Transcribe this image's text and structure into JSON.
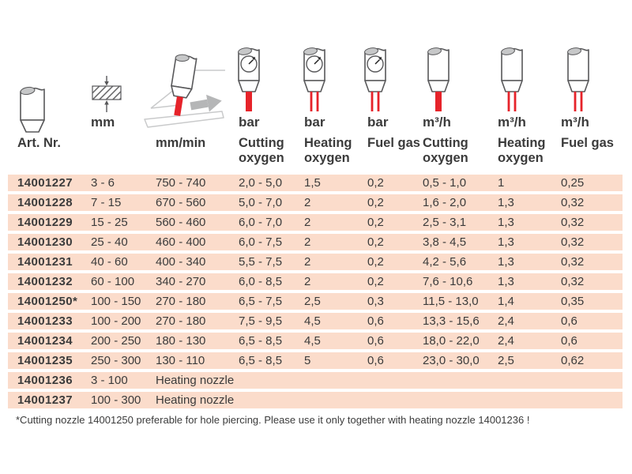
{
  "table": {
    "columns": [
      {
        "id": "art-nr",
        "unit": "",
        "name": "Art. Nr.",
        "icon": "nozzle-plain-icon"
      },
      {
        "id": "mm",
        "unit": "mm",
        "name": "",
        "icon": "material-thickness-icon"
      },
      {
        "id": "mm-min",
        "unit": "",
        "name": "mm/min",
        "icon": "cutting-speed-icon"
      },
      {
        "id": "cutting-oxygen-bar",
        "unit": "bar",
        "name": "Cutting oxygen",
        "icon": "nozzle-gauge-single-jet-icon"
      },
      {
        "id": "heating-oxygen-bar",
        "unit": "bar",
        "name": "Heating oxygen",
        "icon": "nozzle-gauge-double-jet-icon"
      },
      {
        "id": "fuel-gas-bar",
        "unit": "bar",
        "name": "Fuel gas",
        "icon": "nozzle-gauge-double-jet-icon"
      },
      {
        "id": "cutting-oxygen-m3h",
        "unit": "m³/h",
        "name": "Cutting oxygen",
        "icon": "nozzle-single-jet-icon"
      },
      {
        "id": "heating-oxygen-m3h",
        "unit": "m³/h",
        "name": "Heating oxygen",
        "icon": "nozzle-double-jet-icon"
      },
      {
        "id": "fuel-gas-m3h",
        "unit": "m³/h",
        "name": "Fuel gas",
        "icon": "nozzle-double-jet-icon"
      }
    ],
    "rows": [
      {
        "art": "14001227",
        "mm": "3 - 6",
        "values": [
          "750 - 740",
          "2,0 - 5,0",
          "1,5",
          "0,2",
          "0,5 - 1,0",
          "1",
          "0,25"
        ]
      },
      {
        "art": "14001228",
        "mm": "7 - 15",
        "values": [
          "670 - 560",
          "5,0 - 7,0",
          "2",
          "0,2",
          "1,6 - 2,0",
          "1,3",
          "0,32"
        ]
      },
      {
        "art": "14001229",
        "mm": "15 - 25",
        "values": [
          "560 - 460",
          "6,0 - 7,0",
          "2",
          "0,2",
          "2,5 - 3,1",
          "1,3",
          "0,32"
        ]
      },
      {
        "art": "14001230",
        "mm": "25 - 40",
        "values": [
          "460 - 400",
          "6,0 - 7,5",
          "2",
          "0,2",
          "3,8 - 4,5",
          "1,3",
          "0,32"
        ]
      },
      {
        "art": "14001231",
        "mm": "40 - 60",
        "values": [
          "400 - 340",
          "5,5 - 7,5",
          "2",
          "0,2",
          "4,2 - 5,6",
          "1,3",
          "0,32"
        ]
      },
      {
        "art": "14001232",
        "mm": "60 - 100",
        "values": [
          "340 - 270",
          "6,0 - 8,5",
          "2",
          "0,2",
          "7,6 - 10,6",
          "1,3",
          "0,32"
        ]
      },
      {
        "art": "14001250*",
        "mm": "100 - 150",
        "values": [
          "270 - 180",
          "6,5 - 7,5",
          "2,5",
          "0,3",
          "11,5 - 13,0",
          "1,4",
          "0,35"
        ]
      },
      {
        "art": "14001233",
        "mm": "100 - 200",
        "values": [
          "270 - 180",
          "7,5 - 9,5",
          "4,5",
          "0,6",
          "13,3 - 15,6",
          "2,4",
          "0,6"
        ]
      },
      {
        "art": "14001234",
        "mm": "200 - 250",
        "values": [
          "180 - 130",
          "6,5 - 8,5",
          "4,5",
          "0,6",
          "18,0 - 22,0",
          "2,4",
          "0,6"
        ]
      },
      {
        "art": "14001235",
        "mm": "250 - 300",
        "values": [
          "130 - 110",
          "6,5 - 8,5",
          "5",
          "0,6",
          "23,0 - 30,0",
          "2,5",
          "0,62"
        ]
      },
      {
        "art": "14001236",
        "mm": "3 - 100",
        "span": "Heating nozzle"
      },
      {
        "art": "14001237",
        "mm": "100 - 300",
        "span": "Heating nozzle"
      }
    ]
  },
  "footnote": "*Cutting nozzle 14001250 preferable for hole piercing. Please use it only together with heating nozzle 14001236 !",
  "colors": {
    "row_band": "#fbdccb",
    "jet_red": "#e6232a",
    "text": "#3b3b3b",
    "icon_outline": "#58585a",
    "icon_fill_gray": "#c6c7c8",
    "plate_gray": "#c9cacb",
    "arrow_gray": "#b5b6b7"
  }
}
